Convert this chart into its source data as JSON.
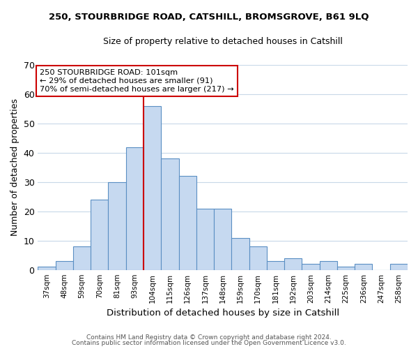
{
  "title_line1": "250, STOURBRIDGE ROAD, CATSHILL, BROMSGROVE, B61 9LQ",
  "title_line2": "Size of property relative to detached houses in Catshill",
  "xlabel": "Distribution of detached houses by size in Catshill",
  "ylabel": "Number of detached properties",
  "bar_labels": [
    "37sqm",
    "48sqm",
    "59sqm",
    "70sqm",
    "81sqm",
    "93sqm",
    "104sqm",
    "115sqm",
    "126sqm",
    "137sqm",
    "148sqm",
    "159sqm",
    "170sqm",
    "181sqm",
    "192sqm",
    "203sqm",
    "214sqm",
    "225sqm",
    "236sqm",
    "247sqm",
    "258sqm"
  ],
  "bar_heights": [
    1,
    3,
    8,
    24,
    30,
    42,
    56,
    38,
    32,
    21,
    21,
    11,
    8,
    3,
    4,
    2,
    3,
    1,
    2,
    0,
    2
  ],
  "bar_color": "#c6d9f0",
  "bar_edge_color": "#5a8fc3",
  "highlight_bar_index": 6,
  "highlight_line_color": "#cc0000",
  "ylim": [
    0,
    70
  ],
  "yticks": [
    0,
    10,
    20,
    30,
    40,
    50,
    60,
    70
  ],
  "annotation_text": "250 STOURBRIDGE ROAD: 101sqm\n← 29% of detached houses are smaller (91)\n70% of semi-detached houses are larger (217) →",
  "annotation_box_edge": "#cc0000",
  "footer_line1": "Contains HM Land Registry data © Crown copyright and database right 2024.",
  "footer_line2": "Contains public sector information licensed under the Open Government Licence v3.0.",
  "background_color": "#ffffff",
  "grid_color": "#c8d8e8"
}
